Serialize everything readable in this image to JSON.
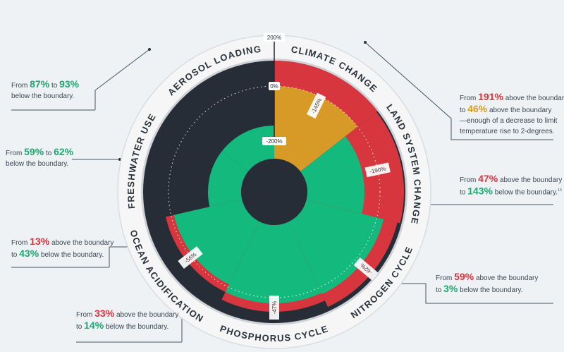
{
  "chart_data": {
    "type": "polar-bar",
    "scale_labels": [
      "200%",
      "0%",
      "-200%"
    ],
    "boundaries": [
      {
        "name": "AEROSOL LOADING",
        "color": "#d8363e",
        "from": {
          "value": "87%",
          "dir": "down",
          "pre": "From",
          "post": "to"
        },
        "to": {
          "value": "93%",
          "dir": "down",
          "post": "below the boundary."
        },
        "change_label": ""
      },
      {
        "name": "CLIMATE CHANGE",
        "from": {
          "value": "191%",
          "dir": "up",
          "pre": "From",
          "post": "above the boundary"
        },
        "to": {
          "value": "46%",
          "dir": "gold",
          "pre": "to",
          "post": "above the boundary"
        },
        "extra": [
          "—enough of a decrease to limit",
          "temperature rise to 2-degrees."
        ],
        "change_label": "-145%"
      },
      {
        "name": "LAND SYSTEM CHANGE",
        "from": {
          "value": "47%",
          "dir": "up",
          "pre": "From",
          "post": "above the boundary"
        },
        "to": {
          "value": "143%",
          "dir": "down",
          "pre": "to",
          "post": "below the boundary.",
          "sup": "13"
        },
        "change_label": "-190%"
      },
      {
        "name": "NITROGEN CYCLE",
        "from": {
          "value": "59%",
          "dir": "up",
          "pre": "From",
          "post": "above the boundary"
        },
        "to": {
          "value": "3%",
          "dir": "down",
          "pre": "to",
          "post": "below the boundary."
        },
        "change_label": "-62%"
      },
      {
        "name": "PHOSPHORUS CYCLE",
        "from": {
          "value": "33%",
          "dir": "up",
          "pre": "From",
          "post": "above the boundary"
        },
        "to": {
          "value": "14%",
          "dir": "down",
          "pre": "to",
          "post": "below the boundary."
        },
        "change_label": "-47%"
      },
      {
        "name": "OCEAN ACIDIFICATION",
        "from": {
          "value": "13%",
          "dir": "up",
          "pre": "From",
          "post": "above the boundary"
        },
        "to": {
          "value": "43%",
          "dir": "down",
          "pre": "to",
          "post": "below the boundary."
        },
        "change_label": "-56%"
      },
      {
        "name": "FRESHWATER USE",
        "from": {
          "value": "59%",
          "dir": "down",
          "pre": "From",
          "post": "to"
        },
        "to": {
          "value": "62%",
          "dir": "down",
          "post": "below the boundary."
        },
        "change_label": ""
      }
    ],
    "colors": {
      "above_boundary": "#d8363e",
      "below_boundary": "#14b97e",
      "climate_target": "#d89a27",
      "background": "#262d37",
      "ring": "#f5f5f5"
    }
  }
}
